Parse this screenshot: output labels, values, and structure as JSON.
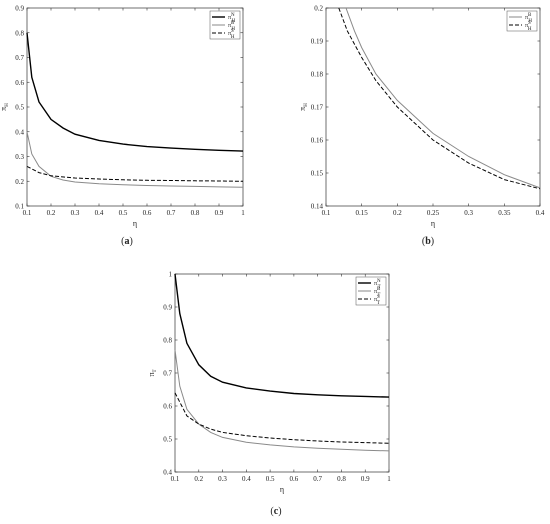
{
  "chart_data": [
    {
      "panel": "(a)",
      "type": "line",
      "xlabel": "η",
      "ylabel": "π",
      "ylabel_sub": "H",
      "xlim": [
        0.1,
        1
      ],
      "ylim": [
        0.1,
        0.9
      ],
      "xticks": [
        "0.1",
        "0.2",
        "0.3",
        "0.4",
        "0.5",
        "0.6",
        "0.7",
        "0.8",
        "0.9",
        "1"
      ],
      "yticks": [
        "0.1",
        "0.2",
        "0.3",
        "0.4",
        "0.5",
        "0.6",
        "0.7",
        "0.8",
        "0.9"
      ],
      "legend": "top-right",
      "series": [
        {
          "name": "π",
          "sub": "H",
          "sup": "N",
          "color": "#000000",
          "dash": "solid",
          "width": 1.4,
          "x": [
            0.1,
            0.12,
            0.15,
            0.2,
            0.25,
            0.3,
            0.4,
            0.5,
            0.6,
            0.7,
            0.8,
            0.9,
            1.0
          ],
          "y": [
            0.8,
            0.62,
            0.52,
            0.45,
            0.415,
            0.39,
            0.365,
            0.35,
            0.34,
            0.334,
            0.329,
            0.325,
            0.322
          ]
        },
        {
          "name": "π",
          "sub": "H",
          "sup": "B",
          "color": "#8a8a8a",
          "dash": "solid",
          "width": 1.0,
          "x": [
            0.1,
            0.12,
            0.15,
            0.2,
            0.25,
            0.3,
            0.4,
            0.5,
            0.6,
            0.7,
            0.8,
            0.9,
            1.0
          ],
          "y": [
            0.4,
            0.31,
            0.26,
            0.22,
            0.205,
            0.197,
            0.19,
            0.186,
            0.183,
            0.181,
            0.179,
            0.177,
            0.176
          ]
        },
        {
          "name": "π",
          "sub": "H",
          "sup": "S",
          "color": "#000000",
          "dash": "4,2",
          "width": 1.0,
          "x": [
            0.1,
            0.15,
            0.2,
            0.3,
            0.4,
            0.5,
            0.6,
            0.7,
            0.8,
            0.9,
            1.0
          ],
          "y": [
            0.26,
            0.235,
            0.222,
            0.213,
            0.209,
            0.206,
            0.204,
            0.203,
            0.202,
            0.201,
            0.2
          ]
        }
      ]
    },
    {
      "panel": "(b)",
      "type": "line",
      "xlabel": "η",
      "ylabel": "π",
      "ylabel_sub": "H",
      "xlim": [
        0.1,
        0.4
      ],
      "ylim": [
        0.14,
        0.2
      ],
      "xticks": [
        "0.1",
        "0.15",
        "0.2",
        "0.25",
        "0.3",
        "0.35",
        "0.4"
      ],
      "yticks": [
        "0.14",
        "0.15",
        "0.16",
        "0.17",
        "0.18",
        "0.19",
        "0.2"
      ],
      "legend": "top-right",
      "series": [
        {
          "name": "π",
          "sub": "H",
          "sup": "B",
          "color": "#8a8a8a",
          "dash": "solid",
          "width": 1.0,
          "x": [
            0.128,
            0.14,
            0.15,
            0.17,
            0.2,
            0.25,
            0.3,
            0.35,
            0.4
          ],
          "y": [
            0.2,
            0.193,
            0.188,
            0.18,
            0.172,
            0.162,
            0.155,
            0.1495,
            0.1455
          ]
        },
        {
          "name": "π",
          "sub": "H",
          "sup": "S",
          "color": "#000000",
          "dash": "4,2",
          "width": 1.0,
          "x": [
            0.118,
            0.13,
            0.15,
            0.17,
            0.2,
            0.25,
            0.3,
            0.35,
            0.4
          ],
          "y": [
            0.2,
            0.193,
            0.185,
            0.178,
            0.17,
            0.16,
            0.153,
            0.148,
            0.1452
          ]
        }
      ]
    },
    {
      "panel": "(c)",
      "type": "line",
      "xlabel": "η",
      "ylabel": "π",
      "ylabel_sub": "T",
      "xlim": [
        0.1,
        1
      ],
      "ylim": [
        0.4,
        1
      ],
      "xticks": [
        "0.1",
        "0.2",
        "0.3",
        "0.4",
        "0.5",
        "0.6",
        "0.7",
        "0.8",
        "0.9",
        "1"
      ],
      "yticks": [
        "0.4",
        "0.5",
        "0.6",
        "0.7",
        "0.8",
        "0.9",
        "1"
      ],
      "legend": "top-right",
      "series": [
        {
          "name": "π",
          "sub": "T",
          "sup": "N",
          "color": "#000000",
          "dash": "solid",
          "width": 1.4,
          "x": [
            0.1,
            0.12,
            0.15,
            0.2,
            0.25,
            0.3,
            0.4,
            0.5,
            0.6,
            0.7,
            0.8,
            0.9,
            1.0
          ],
          "y": [
            1.0,
            0.88,
            0.79,
            0.725,
            0.69,
            0.672,
            0.655,
            0.645,
            0.638,
            0.634,
            0.631,
            0.629,
            0.627
          ]
        },
        {
          "name": "π",
          "sub": "T",
          "sup": "B",
          "color": "#8a8a8a",
          "dash": "solid",
          "width": 1.0,
          "x": [
            0.1,
            0.12,
            0.15,
            0.2,
            0.25,
            0.3,
            0.4,
            0.5,
            0.6,
            0.7,
            0.8,
            0.9,
            1.0
          ],
          "y": [
            0.77,
            0.66,
            0.59,
            0.545,
            0.52,
            0.505,
            0.49,
            0.482,
            0.476,
            0.472,
            0.469,
            0.466,
            0.464
          ]
        },
        {
          "name": "π",
          "sub": "T",
          "sup": "S",
          "color": "#000000",
          "dash": "4,2",
          "width": 1.0,
          "x": [
            0.1,
            0.15,
            0.2,
            0.25,
            0.3,
            0.4,
            0.5,
            0.6,
            0.7,
            0.8,
            0.9,
            1.0
          ],
          "y": [
            0.64,
            0.57,
            0.545,
            0.53,
            0.52,
            0.51,
            0.503,
            0.498,
            0.494,
            0.491,
            0.489,
            0.487
          ]
        }
      ]
    }
  ]
}
